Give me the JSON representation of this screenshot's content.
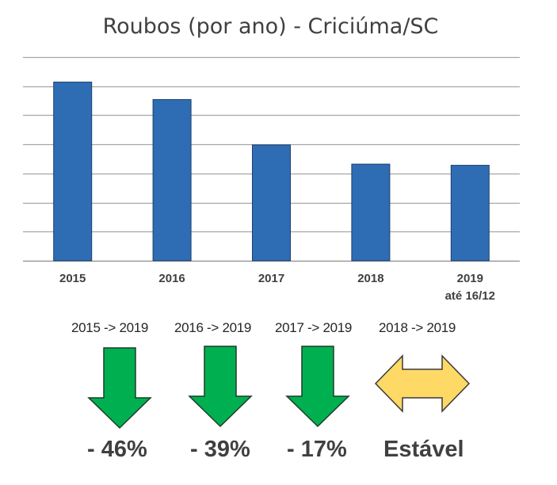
{
  "chart_data": {
    "type": "bar",
    "title": "Roubos (por ano) - Criciúma/SC",
    "categories": [
      [
        "2015"
      ],
      [
        "2016"
      ],
      [
        "2017"
      ],
      [
        "2018"
      ],
      [
        "2019",
        "até 16/12"
      ]
    ],
    "values": [
      3.07,
      2.77,
      1.99,
      1.66,
      1.64
    ],
    "ylim": [
      0,
      3.5
    ],
    "y_gridlines": 7,
    "y_tick_labels_visible": false,
    "grid": true,
    "bar_color": "#2E6DB4",
    "xlabel": "",
    "ylabel": ""
  },
  "comparisons": [
    {
      "label": "2015 -> 2019",
      "value": "- 46%",
      "icon": "down-arrow-icon",
      "color": "#00B050"
    },
    {
      "label": "2016 -> 2019",
      "value": "- 39%",
      "icon": "down-arrow-icon",
      "color": "#00B050"
    },
    {
      "label": "2017 -> 2019",
      "value": "- 17%",
      "icon": "down-arrow-icon",
      "color": "#00B050"
    },
    {
      "label": "2018 -> 2019",
      "value": "Estável",
      "icon": "double-arrow-icon",
      "color": "#FFD966"
    }
  ]
}
